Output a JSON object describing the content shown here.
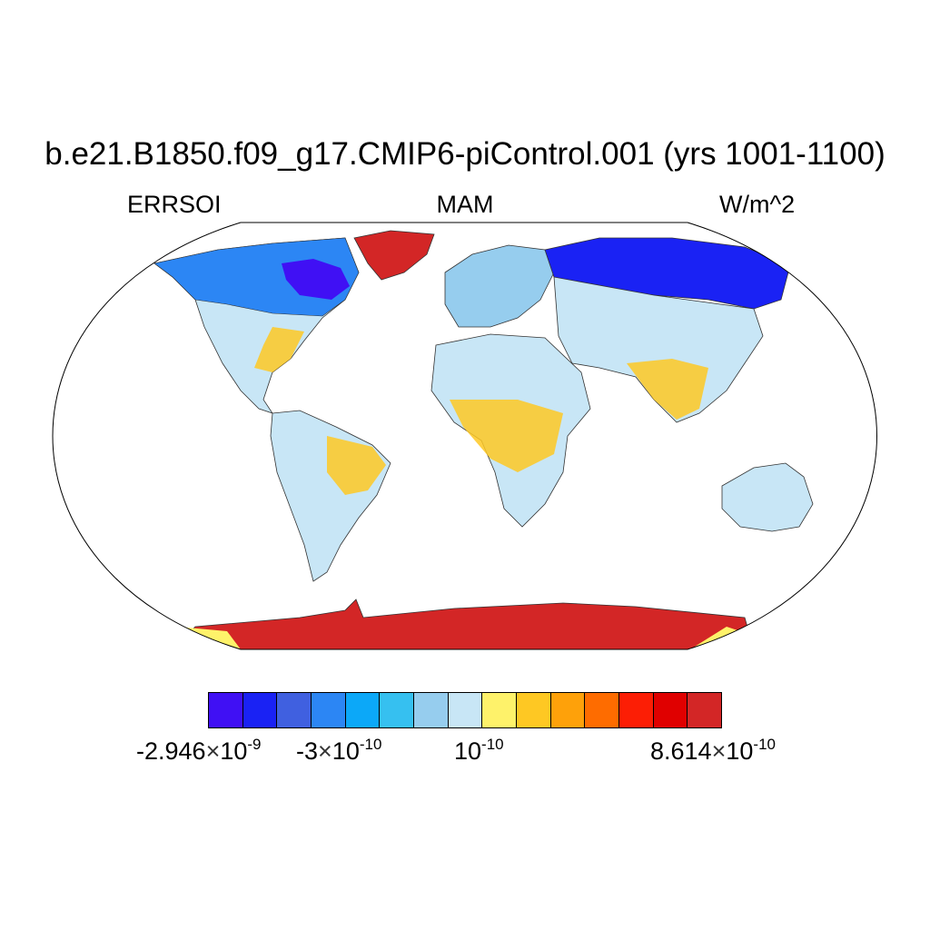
{
  "title": "b.e21.B1850.f09_g17.CMIP6-piControl.001 (yrs 1001-1100)",
  "left_label": "ERRSOI",
  "center_label": "MAM",
  "right_label": "W/m^2",
  "projection": "robinson",
  "colorbar": {
    "colors": [
      "#4010f4",
      "#1a22f4",
      "#4060e0",
      "#2c86f4",
      "#0ca8f8",
      "#36c0f0",
      "#96cdee",
      "#c8e6f6",
      "#fef26a",
      "#fec823",
      "#fea10a",
      "#fe6c00",
      "#fc1e05",
      "#e00000",
      "#d32626"
    ],
    "labels": [
      {
        "mant": "-2.946",
        "exp": "-9"
      },
      {
        "mant": "-3",
        "exp": "-10"
      },
      {
        "mant": "",
        "exp": "-10"
      },
      {
        "mant": "8.614",
        "exp": "-10"
      }
    ]
  },
  "regions": [
    {
      "name": "north-america",
      "color": "#c8e6f6"
    },
    {
      "name": "canada",
      "color": "#2c86f4"
    },
    {
      "name": "greenland",
      "color": "#d32626"
    },
    {
      "name": "south-america",
      "color": "#c8e6f6"
    },
    {
      "name": "europe",
      "color": "#96cdee"
    },
    {
      "name": "russia",
      "color": "#1a22f4"
    },
    {
      "name": "africa",
      "color": "#c8e6f6"
    },
    {
      "name": "asia",
      "color": "#c8e6f6"
    },
    {
      "name": "australia",
      "color": "#c8e6f6"
    },
    {
      "name": "antarctica",
      "color": "#d32626"
    }
  ]
}
